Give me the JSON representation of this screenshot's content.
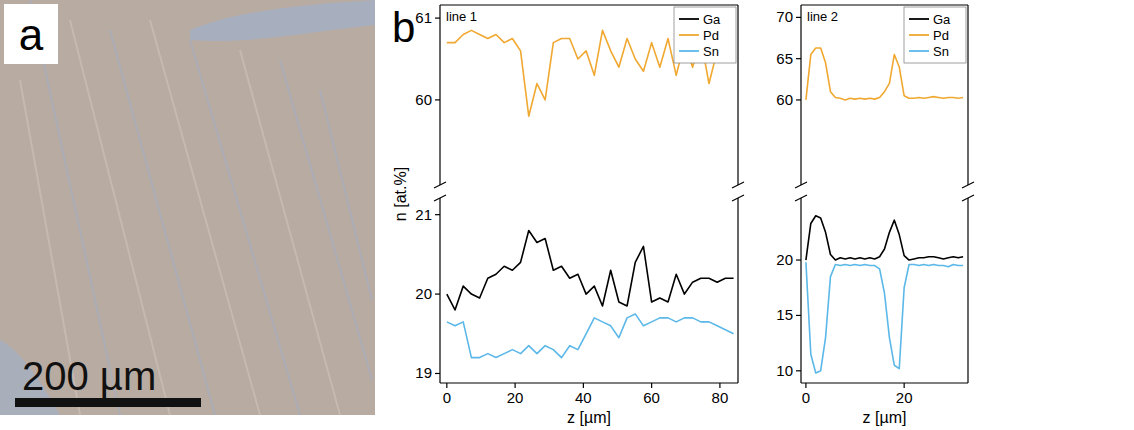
{
  "panels": {
    "a": {
      "label": "a",
      "scale_bar": "200 µm"
    },
    "b": {
      "label": "b"
    }
  },
  "chart_data": [
    {
      "type": "line",
      "title": "line 1",
      "x_label": "z [µm]",
      "y_label": "n [at.%]",
      "x": [
        0,
        2.4,
        4.8,
        7.2,
        9.6,
        12,
        14.4,
        16.8,
        19.2,
        21.6,
        24,
        26.4,
        28.8,
        31.2,
        33.6,
        36,
        38.4,
        40.8,
        43.2,
        45.6,
        48,
        50.4,
        52.8,
        55.2,
        57.6,
        60,
        62.4,
        64.8,
        67.2,
        69.6,
        72,
        74.4,
        76.8,
        79.2,
        81.6,
        84
      ],
      "xlim": [
        -2,
        85.3
      ],
      "xticks": [
        0,
        20,
        40,
        60,
        80
      ],
      "ylim": [
        18.88,
        21.21
      ],
      "yticks": [
        19,
        20,
        21
      ],
      "y2lim": [
        58.96,
        61.16
      ],
      "y2ticks": [
        60,
        61
      ],
      "legend": "top-right",
      "series": [
        {
          "name": "Ga",
          "color": "#000000",
          "values": [
            20.0,
            19.8,
            20.1,
            20.0,
            19.95,
            20.2,
            20.25,
            20.35,
            20.3,
            20.4,
            20.8,
            20.65,
            20.7,
            20.3,
            20.35,
            20.2,
            20.25,
            20.0,
            20.1,
            19.85,
            20.3,
            19.9,
            19.85,
            20.4,
            20.6,
            19.9,
            19.95,
            19.9,
            20.25,
            20.0,
            20.15,
            20.2,
            20.2,
            20.15,
            20.2,
            20.2
          ]
        },
        {
          "name": "Pd",
          "color": "#f0a830",
          "axis": "y2",
          "values": [
            60.7,
            60.7,
            60.8,
            60.85,
            60.8,
            60.75,
            60.8,
            60.7,
            60.75,
            60.6,
            59.8,
            60.2,
            60,
            60.7,
            60.75,
            60.75,
            60.5,
            60.6,
            60.3,
            60.85,
            60.6,
            60.4,
            60.75,
            60.5,
            60.35,
            60.7,
            60.4,
            60.75,
            60.3,
            60.7,
            60.4,
            60.75,
            60.2,
            60.6,
            60.55,
            60.6
          ]
        },
        {
          "name": "Sn",
          "color": "#5bb8e8",
          "values": [
            19.65,
            19.6,
            19.65,
            19.2,
            19.2,
            19.25,
            19.2,
            19.25,
            19.3,
            19.25,
            19.35,
            19.25,
            19.35,
            19.3,
            19.2,
            19.35,
            19.3,
            19.5,
            19.7,
            19.65,
            19.6,
            19.45,
            19.7,
            19.75,
            19.6,
            19.65,
            19.7,
            19.7,
            19.65,
            19.7,
            19.7,
            19.65,
            19.65,
            19.6,
            19.55,
            19.5
          ]
        }
      ]
    },
    {
      "type": "line",
      "title": "line 2",
      "x_label": "z [µm]",
      "x": [
        0,
        1,
        2,
        3,
        4,
        5,
        6,
        7,
        8,
        9,
        10,
        11,
        12,
        13,
        14,
        15,
        16,
        17,
        18,
        19,
        20,
        21,
        22,
        23,
        24,
        25,
        26,
        27,
        28,
        29,
        30,
        31,
        32
      ],
      "xlim": [
        -1,
        33
      ],
      "xticks": [
        0,
        20
      ],
      "ylim": [
        8.9,
        25.6
      ],
      "yticks": [
        10,
        15,
        20
      ],
      "y2lim": [
        49.7,
        71.5
      ],
      "y2ticks": [
        60,
        65,
        70
      ],
      "legend": "top-right",
      "series": [
        {
          "name": "Ga",
          "color": "#000000",
          "values": [
            20,
            23.3,
            24,
            23.8,
            22.5,
            20.5,
            20,
            20.2,
            20.1,
            20.2,
            20.1,
            20.2,
            20.1,
            20.2,
            20.1,
            20.3,
            21,
            22.5,
            23.6,
            22.3,
            20.4,
            20,
            20.1,
            20.2,
            20.2,
            20.3,
            20.3,
            20.2,
            20.1,
            20.2,
            20.3,
            20.2,
            20.3
          ]
        },
        {
          "name": "Pd",
          "color": "#f0a830",
          "axis": "y2",
          "values": [
            60,
            65.5,
            66.3,
            66.3,
            64.5,
            61,
            60.3,
            60.2,
            60,
            60.2,
            60.1,
            60.2,
            60.1,
            60.2,
            60.1,
            60.3,
            61,
            62,
            65.5,
            64,
            60.5,
            60.2,
            60.2,
            60.3,
            60.2,
            60.3,
            60.4,
            60.3,
            60.2,
            60.3,
            60.3,
            60.2,
            60.3
          ]
        },
        {
          "name": "Sn",
          "color": "#5bb8e8",
          "values": [
            19.8,
            11.5,
            9.8,
            10,
            13,
            18.5,
            19.6,
            19.5,
            19.6,
            19.5,
            19.6,
            19.5,
            19.6,
            19.5,
            19.5,
            19.2,
            17,
            13,
            10.5,
            10.2,
            17.5,
            19.6,
            19.6,
            19.5,
            19.6,
            19.5,
            19.6,
            19.5,
            19.5,
            19.4,
            19.6,
            19.5,
            19.5
          ]
        }
      ]
    }
  ]
}
